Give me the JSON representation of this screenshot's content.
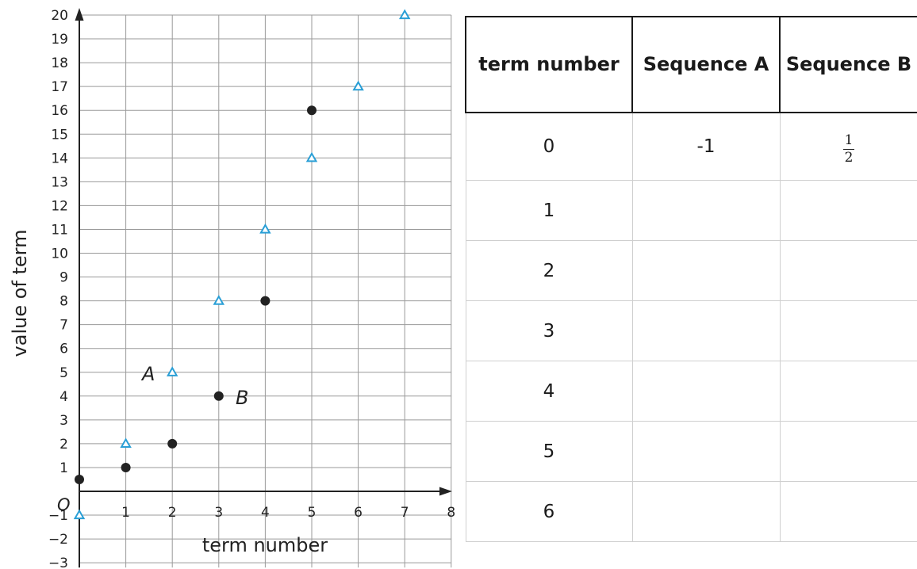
{
  "chart_data": {
    "type": "scatter",
    "xlabel": "term number",
    "ylabel": "value of term",
    "origin_label": "O",
    "xlim": [
      0,
      8
    ],
    "ylim": [
      -3,
      20
    ],
    "x_ticks": [
      "1",
      "2",
      "3",
      "4",
      "5",
      "6",
      "7",
      "8"
    ],
    "y_ticks": [
      "−3",
      "−2",
      "−1",
      "1",
      "2",
      "3",
      "4",
      "5",
      "6",
      "7",
      "8",
      "9",
      "10",
      "11",
      "12",
      "13",
      "14",
      "15",
      "16",
      "17",
      "18",
      "19",
      "20"
    ],
    "grid": true,
    "series": [
      {
        "name": "A",
        "marker": "triangle",
        "color": "#2a9fd6",
        "x": [
          0,
          1,
          2,
          3,
          4,
          5,
          6,
          7
        ],
        "y": [
          -1,
          2,
          5,
          8,
          11,
          14,
          17,
          20
        ]
      },
      {
        "name": "B",
        "marker": "circle",
        "color": "#222222",
        "x": [
          0,
          1,
          2,
          3,
          4,
          5
        ],
        "y": [
          0.5,
          1,
          2,
          4,
          8,
          16
        ]
      }
    ]
  },
  "table": {
    "headers": [
      "term number",
      "Sequence A",
      "Sequence B"
    ],
    "rows": [
      {
        "term": "0",
        "a": "-1",
        "b_num": "1",
        "b_den": "2"
      },
      {
        "term": "1",
        "a": "",
        "b": ""
      },
      {
        "term": "2",
        "a": "",
        "b": ""
      },
      {
        "term": "3",
        "a": "",
        "b": ""
      },
      {
        "term": "4",
        "a": "",
        "b": ""
      },
      {
        "term": "5",
        "a": "",
        "b": ""
      },
      {
        "term": "6",
        "a": "",
        "b": ""
      }
    ]
  }
}
